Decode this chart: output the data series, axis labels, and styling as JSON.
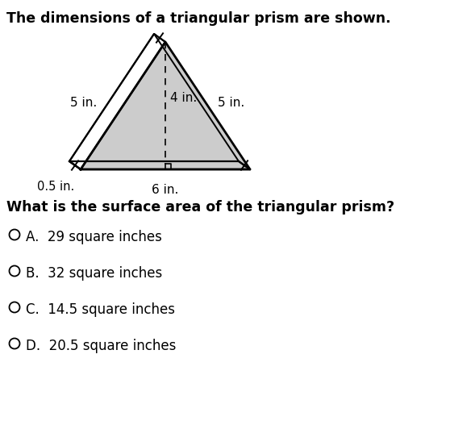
{
  "title": "The dimensions of a triangular prism are shown.",
  "question": "What is the surface area of the triangular prism?",
  "options": [
    "A.  29 square inches",
    "B.  32 square inches",
    "C.  14.5 square inches",
    "D.  20.5 square inches"
  ],
  "bg_color": "#ffffff",
  "triangle_fill": "#cccccc",
  "label_5in_left": "5 in.",
  "label_5in_right": "5 in.",
  "label_4in": "4 in.",
  "label_6in": "6 in.",
  "label_05in": "0.5 in.",
  "title_fontsize": 12.5,
  "question_fontsize": 12.5,
  "option_fontsize": 12
}
